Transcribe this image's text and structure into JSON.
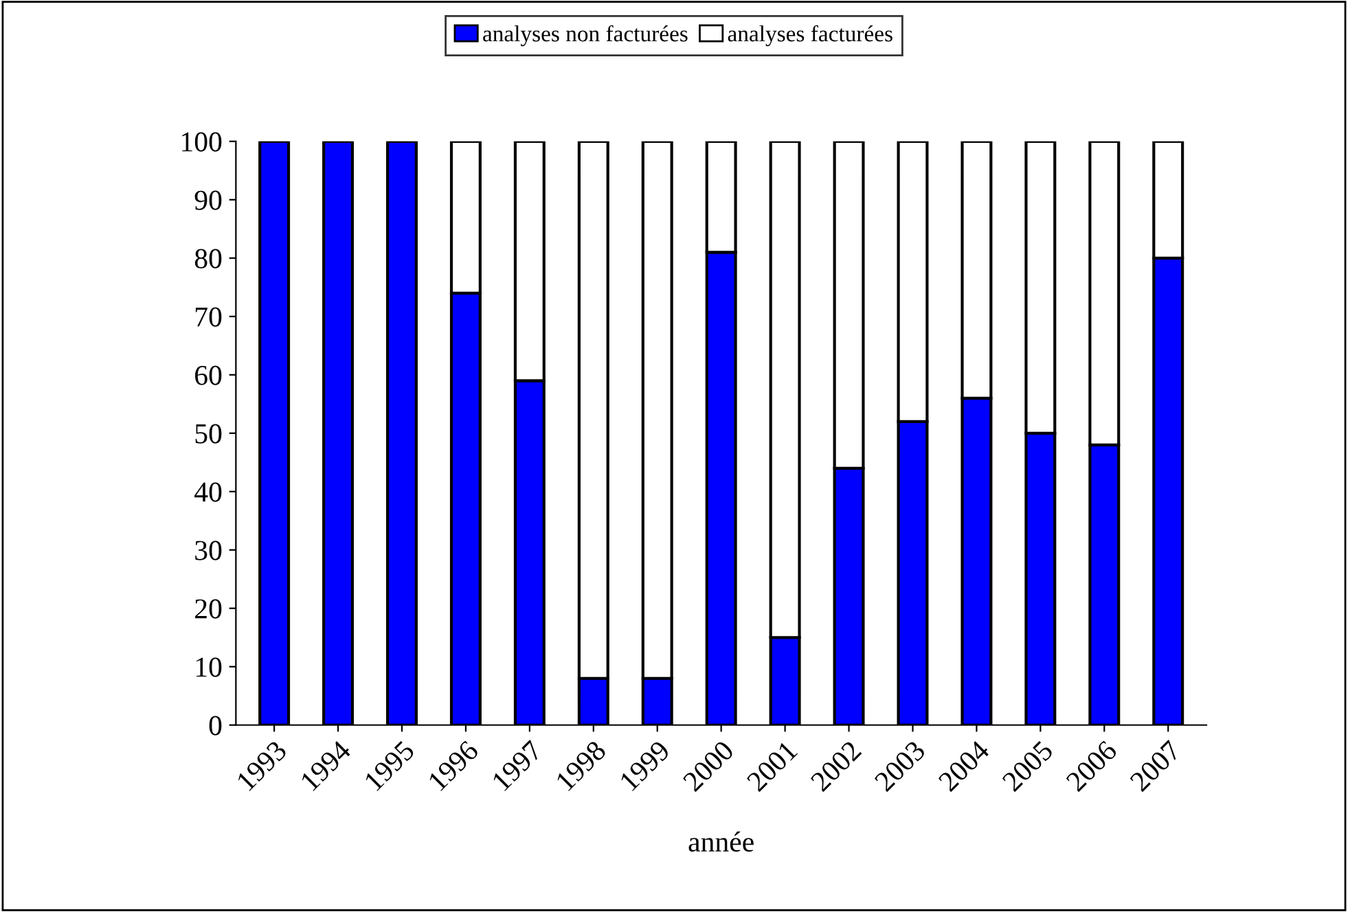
{
  "chart_data": {
    "type": "bar",
    "stacked": true,
    "xlabel": "année",
    "categories": [
      "1993",
      "1994",
      "1995",
      "1996",
      "1997",
      "1998",
      "1999",
      "2000",
      "2001",
      "2002",
      "2003",
      "2004",
      "2005",
      "2006",
      "2007"
    ],
    "series": [
      {
        "name": "analyses non facturées",
        "color": "#0000ff",
        "values": [
          100,
          100,
          100,
          74,
          59,
          8,
          8,
          81,
          15,
          44,
          52,
          56,
          50,
          48,
          80
        ]
      },
      {
        "name": "analyses facturées",
        "color": "#ffffff",
        "values": [
          null,
          null,
          null,
          26,
          41,
          92,
          92,
          19,
          85,
          56,
          48,
          44,
          50,
          52,
          20
        ]
      }
    ],
    "ylim": [
      0,
      100
    ],
    "yticks": [
      0,
      10,
      20,
      30,
      40,
      50,
      60,
      70,
      80,
      90,
      100
    ],
    "grid": false,
    "legend": "top"
  }
}
